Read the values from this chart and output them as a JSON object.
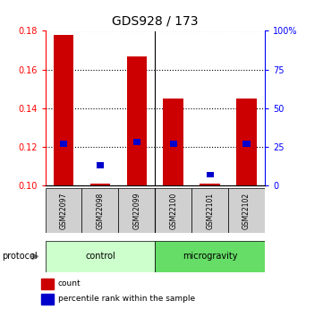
{
  "title": "GDS928 / 173",
  "samples": [
    "GSM22097",
    "GSM22098",
    "GSM22099",
    "GSM22100",
    "GSM22101",
    "GSM22102"
  ],
  "red_values": [
    0.178,
    0.101,
    0.167,
    0.145,
    0.101,
    0.145
  ],
  "blue_values": [
    0.12,
    0.109,
    0.121,
    0.12,
    0.104,
    0.12
  ],
  "group_control": {
    "label": "control",
    "color": "#ccffcc"
  },
  "group_micro": {
    "label": "microgravity",
    "color": "#66dd66"
  },
  "ylim": [
    0.1,
    0.18
  ],
  "y_ticks_left": [
    0.1,
    0.12,
    0.14,
    0.16,
    0.18
  ],
  "y_ticks_right": [
    0,
    25,
    50,
    75,
    100
  ],
  "title_fontsize": 10,
  "bar_color": "#cc0000",
  "blue_color": "#0000cc",
  "protocol_label": "protocol",
  "legend_items": [
    "count",
    "percentile rank within the sample"
  ]
}
